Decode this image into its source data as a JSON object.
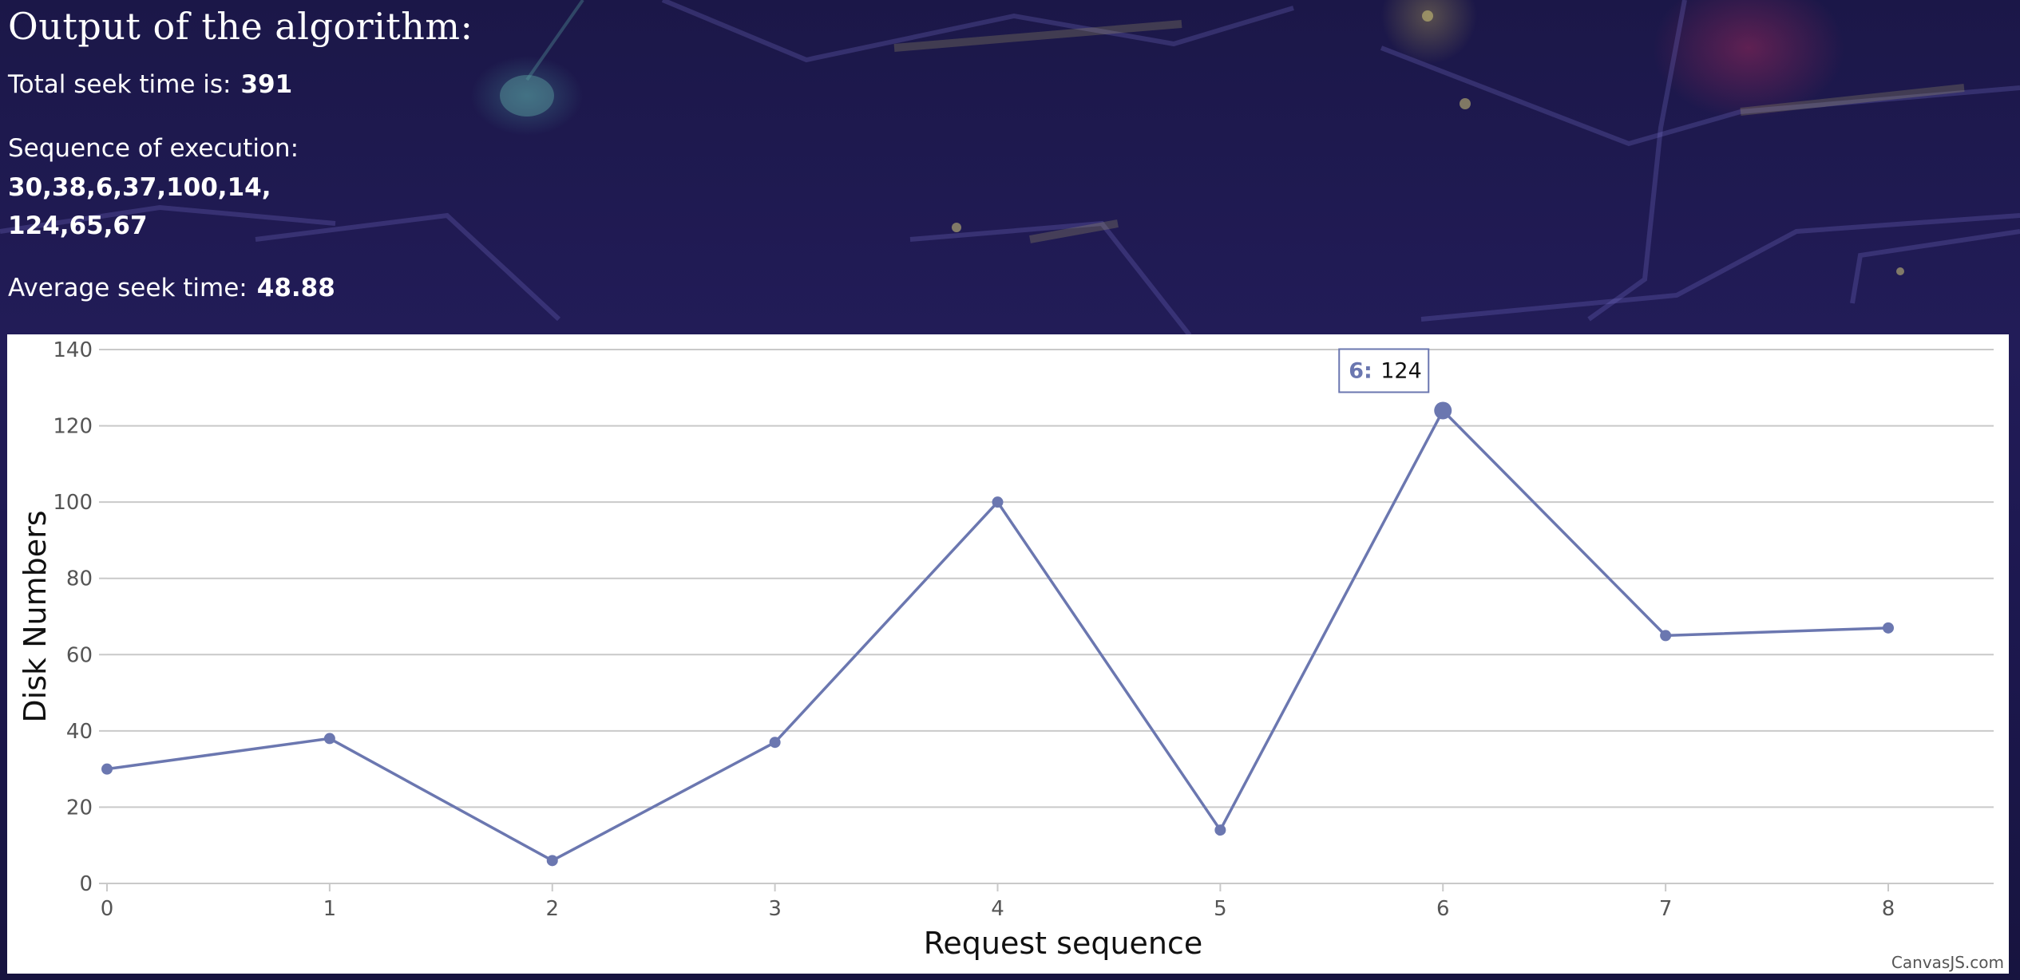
{
  "header": {
    "title": "Output of the algorithm:",
    "total_seek_label": "Total seek time is:",
    "total_seek_value": "391",
    "sequence_label": "Sequence of execution:",
    "sequence_line1": "30,38,6,37,100,14,",
    "sequence_line2": "124,65,67",
    "avg_seek_label": "Average seek time:",
    "avg_seek_value": "48.88"
  },
  "colors": {
    "line": "#6b77b0",
    "grid": "#c9c9c9",
    "axis_text": "#555555",
    "background_top": "#1b1748"
  },
  "chart_data": {
    "type": "line",
    "x": [
      0,
      1,
      2,
      3,
      4,
      5,
      6,
      7,
      8
    ],
    "series": [
      {
        "values": [
          30,
          38,
          6,
          37,
          100,
          14,
          124,
          65,
          67
        ]
      }
    ],
    "xlabel": "Request sequence",
    "ylabel": "Disk Numbers",
    "xlim": [
      0,
      8
    ],
    "ylim": [
      0,
      140
    ],
    "x_ticks": [
      0,
      1,
      2,
      3,
      4,
      5,
      6,
      7,
      8
    ],
    "y_ticks": [
      0,
      20,
      40,
      60,
      80,
      100,
      120,
      140
    ],
    "grid": true,
    "legend": "none",
    "tooltip": {
      "x_label": "6:",
      "value": "124"
    },
    "credit": "CanvasJS.com"
  }
}
